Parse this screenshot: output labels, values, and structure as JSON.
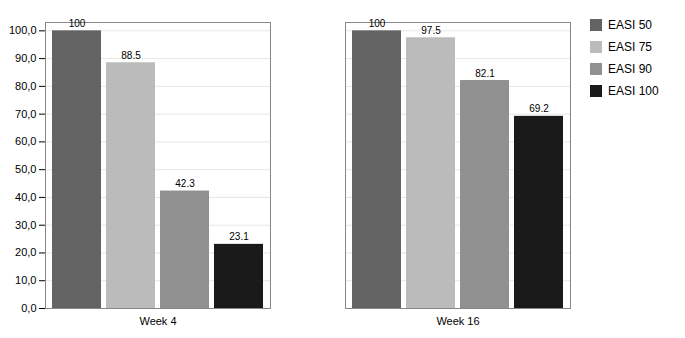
{
  "chart_data": {
    "type": "bar",
    "categories": [
      "Week 4",
      "Week 16"
    ],
    "series": [
      {
        "name": "EASI 50",
        "color": "#636363",
        "values": [
          100,
          100
        ]
      },
      {
        "name": "EASI 75",
        "color": "#BBBBBB",
        "values": [
          88.5,
          97.5
        ]
      },
      {
        "name": "EASI 90",
        "color": "#909090",
        "values": [
          42.3,
          82.1
        ]
      },
      {
        "name": "EASI 100",
        "color": "#1A1A1A",
        "values": [
          23.1,
          69.2
        ]
      }
    ],
    "ylim": [
      0,
      103
    ],
    "yticks": [
      {
        "value": 0,
        "label": "0,0"
      },
      {
        "value": 10,
        "label": "10,0"
      },
      {
        "value": 20,
        "label": "20,0"
      },
      {
        "value": 30,
        "label": "30,0"
      },
      {
        "value": 40,
        "label": "40,0"
      },
      {
        "value": 50,
        "label": "50,0"
      },
      {
        "value": 60,
        "label": "60,0"
      },
      {
        "value": 70,
        "label": "70,0"
      },
      {
        "value": 80,
        "label": "80,0"
      },
      {
        "value": 90,
        "label": "90,0"
      },
      {
        "value": 100,
        "label": "100,0"
      }
    ],
    "grid": true,
    "legend": "upper right",
    "data_labels": true
  }
}
